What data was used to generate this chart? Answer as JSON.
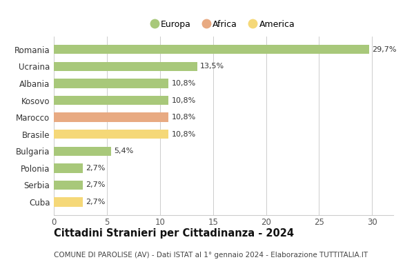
{
  "categories": [
    "Romania",
    "Ucraina",
    "Albania",
    "Kosovo",
    "Marocco",
    "Brasile",
    "Bulgaria",
    "Polonia",
    "Serbia",
    "Cuba"
  ],
  "values": [
    29.7,
    13.5,
    10.8,
    10.8,
    10.8,
    10.8,
    5.4,
    2.7,
    2.7,
    2.7
  ],
  "labels": [
    "29,7%",
    "13,5%",
    "10,8%",
    "10,8%",
    "10,8%",
    "10,8%",
    "5,4%",
    "2,7%",
    "2,7%",
    "2,7%"
  ],
  "colors": [
    "#a8c87a",
    "#a8c87a",
    "#a8c87a",
    "#a8c87a",
    "#e8aa82",
    "#f5d878",
    "#a8c87a",
    "#a8c87a",
    "#a8c87a",
    "#f5d878"
  ],
  "legend": [
    {
      "label": "Europa",
      "color": "#a8c87a"
    },
    {
      "label": "Africa",
      "color": "#e8aa82"
    },
    {
      "label": "America",
      "color": "#f5d878"
    }
  ],
  "xlim": [
    0,
    32
  ],
  "xticks": [
    0,
    5,
    10,
    15,
    20,
    25,
    30
  ],
  "title": "Cittadini Stranieri per Cittadinanza - 2024",
  "subtitle": "COMUNE DI PAROLISE (AV) - Dati ISTAT al 1° gennaio 2024 - Elaborazione TUTTITALIA.IT",
  "title_fontsize": 10.5,
  "subtitle_fontsize": 7.5,
  "bg_color": "#ffffff",
  "grid_color": "#cccccc",
  "bar_height": 0.55
}
